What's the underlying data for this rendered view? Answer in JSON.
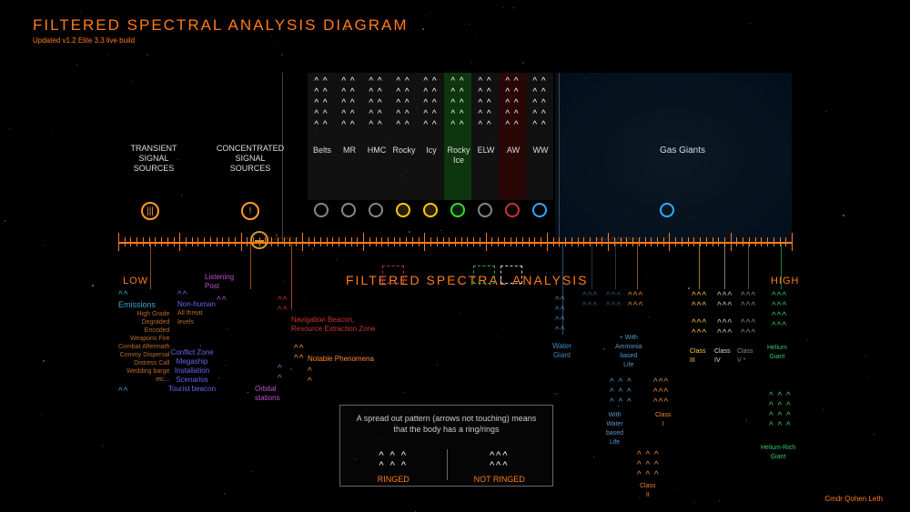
{
  "title": "FILTERED SPECTRAL ANALYSIS DIAGRAM",
  "subtitle": "Updated v1.2 Elite 3.3 live build",
  "axis": {
    "title": "FILTERED SPECTRAL ANALYSIS",
    "low": "LOW",
    "high": "HIGH"
  },
  "top_signal_labels": {
    "transient": "TRANSIENT\nSIGNAL\nSOURCES",
    "concentrated": "CONCENTRATED\nSIGNAL\nSOURCES"
  },
  "top_body_labels": [
    "Belts",
    "MR",
    "HMC",
    "Rocky",
    "Icy",
    "Rocky\nIce",
    "ELW",
    "AW",
    "WW",
    "Gas Giants"
  ],
  "body_ring_colors": [
    "#888888",
    "#888888",
    "#888888",
    "#ffcc00",
    "#ffcc00",
    "#33dd33",
    "#888888",
    "#cc3333",
    "#33aaff"
  ],
  "legend": {
    "text": "A spread out pattern (arrows not touching) means that the body has a ring/rings",
    "ringed": "RINGED",
    "not_ringed": "NOT RINGED"
  },
  "credit": "Cmdr Qohen Leth",
  "branches": {
    "emissions": {
      "title": "Emissions",
      "color": "#3aa9d4",
      "items": [
        "High Grade",
        "Degraded",
        "Encoded",
        "Weapons Fire",
        "Combat Aftermath",
        "Convoy Dispersal",
        "Distress Call",
        "Wedding barge",
        "etc..."
      ],
      "item_color": "#b86a2a"
    },
    "nonhuman": {
      "title": "Non-human",
      "color": "#6666ee",
      "sub": "All threat\nlevels",
      "sub_color": "#b86a2a"
    },
    "listening": {
      "title": "Listening\nPost",
      "color": "#bb55cc"
    },
    "conflict": {
      "title": "Conflict Zone\nMegaship\nInstallation\nScenarios\nTourist beacon",
      "color": "#6666ee"
    },
    "orbital": {
      "title": "Orbital\nstations",
      "color": "#bb55cc"
    },
    "nav": {
      "title": "Navigation Beacon,\nResource Extraction Zone",
      "color": "#cc3333"
    },
    "phenomena": {
      "title": "Notable Phenomena",
      "color": "#ff8833"
    },
    "water_giant": {
      "title": "Water\nGiant",
      "color": "#4488bb"
    },
    "ammonia": {
      "title": "+ With\nAmmonia\nbased\nLife",
      "color": "#5599cc"
    },
    "waterlife": {
      "title": "With\nWater\nbased\nLife",
      "color": "#5599cc"
    },
    "class1": {
      "title": "Class\nI",
      "color": "#ee8833"
    },
    "class2": {
      "title": "Class\nII",
      "color": "#ee8833"
    },
    "class34": {
      "c3": "Class\nIII",
      "c4": "Class\nIV",
      "cv": "Class\nV *",
      "c3_color": "#ffcc33",
      "c4_color": "#eeeeee",
      "cv_color": "#888888"
    },
    "helium": {
      "title": "Helium\nGiant",
      "color": "#33cc66"
    },
    "helium_rich": {
      "title": "Helium-Rich\nGiant",
      "color": "#33cc66"
    }
  },
  "colors": {
    "orange": "#ff7b1a",
    "bg": "#000000"
  }
}
